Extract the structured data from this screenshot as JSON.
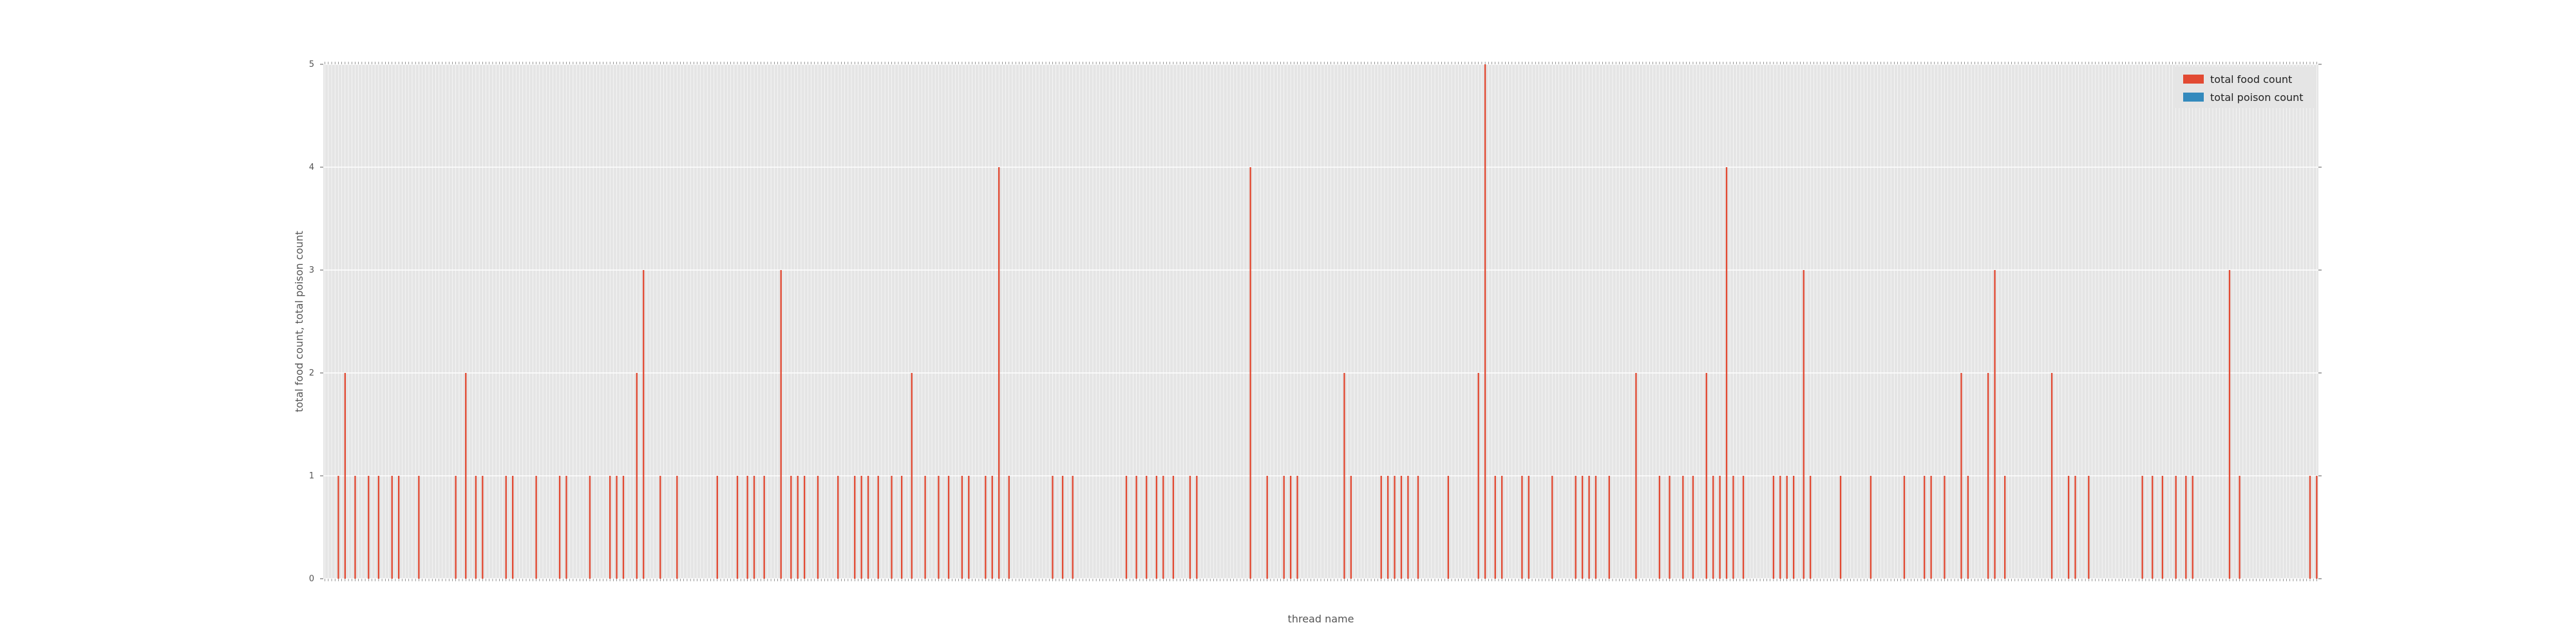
{
  "chart_data": {
    "type": "bar",
    "xlabel": "thread name",
    "ylabel": "total food count, total poison count",
    "ylim": [
      0,
      5
    ],
    "yticks": [
      0,
      1,
      2,
      3,
      4,
      5
    ],
    "grid": true,
    "legend_position": "top-right",
    "x_tick_labels": "unreadable (dense rotated thread-name labels, one per bar)",
    "series": [
      {
        "name": "total food count",
        "color": "#E24A33",
        "values": [
          0,
          0,
          0,
          0,
          1,
          0,
          2,
          0,
          0,
          1,
          0,
          0,
          0,
          1,
          0,
          0,
          1,
          0,
          0,
          0,
          1,
          0,
          1,
          0,
          0,
          0,
          0,
          0,
          1,
          0,
          0,
          0,
          0,
          0,
          0,
          0,
          0,
          0,
          0,
          1,
          0,
          0,
          2,
          0,
          0,
          1,
          0,
          1,
          0,
          0,
          0,
          0,
          0,
          0,
          1,
          0,
          1,
          0,
          0,
          0,
          0,
          0,
          0,
          1,
          0,
          0,
          0,
          0,
          0,
          0,
          1,
          0,
          1,
          0,
          0,
          0,
          0,
          0,
          0,
          1,
          0,
          0,
          0,
          0,
          0,
          1,
          0,
          1,
          0,
          1,
          0,
          0,
          0,
          2,
          0,
          3,
          0,
          0,
          0,
          0,
          1,
          0,
          0,
          0,
          0,
          1,
          0,
          0,
          0,
          0,
          0,
          0,
          0,
          0,
          0,
          0,
          0,
          1,
          0,
          0,
          0,
          0,
          0,
          1,
          0,
          0,
          1,
          0,
          1,
          0,
          0,
          1,
          0,
          0,
          0,
          0,
          3,
          0,
          0,
          1,
          0,
          1,
          0,
          1,
          0,
          0,
          0,
          1,
          0,
          0,
          0,
          0,
          0,
          1,
          0,
          0,
          0,
          0,
          1,
          0,
          1,
          0,
          1,
          0,
          0,
          1,
          0,
          0,
          0,
          1,
          0,
          0,
          1,
          0,
          0,
          2,
          0,
          0,
          0,
          1,
          0,
          0,
          0,
          1,
          0,
          0,
          1,
          0,
          0,
          0,
          1,
          0,
          1,
          0,
          0,
          0,
          0,
          1,
          0,
          1,
          0,
          4,
          0,
          0,
          1,
          0,
          0,
          0,
          0,
          0,
          0,
          0,
          0,
          0,
          0,
          0,
          0,
          1,
          0,
          0,
          1,
          0,
          0,
          1,
          0,
          0,
          0,
          0,
          0,
          0,
          0,
          0,
          0,
          0,
          0,
          0,
          0,
          0,
          0,
          1,
          0,
          0,
          1,
          0,
          0,
          1,
          0,
          0,
          1,
          0,
          1,
          0,
          0,
          1,
          0,
          0,
          0,
          0,
          1,
          0,
          1,
          0,
          0,
          0,
          0,
          0,
          0,
          0,
          0,
          0,
          0,
          0,
          0,
          0,
          0,
          0,
          4,
          0,
          0,
          0,
          0,
          1,
          0,
          0,
          0,
          0,
          1,
          0,
          1,
          0,
          1,
          0,
          0,
          0,
          0,
          0,
          0,
          0,
          0,
          0,
          0,
          0,
          0,
          0,
          2,
          0,
          1,
          0,
          0,
          0,
          0,
          0,
          0,
          0,
          0,
          1,
          0,
          1,
          0,
          1,
          0,
          1,
          0,
          1,
          0,
          0,
          1,
          0,
          0,
          0,
          0,
          0,
          0,
          0,
          0,
          1,
          0,
          0,
          0,
          0,
          0,
          0,
          0,
          0,
          2,
          0,
          5,
          0,
          0,
          1,
          0,
          1,
          0,
          0,
          0,
          0,
          0,
          1,
          0,
          1,
          0,
          0,
          0,
          0,
          0,
          0,
          1,
          0,
          0,
          0,
          0,
          0,
          0,
          1,
          0,
          1,
          0,
          1,
          0,
          1,
          0,
          0,
          0,
          1,
          0,
          0,
          0,
          0,
          0,
          0,
          0,
          2,
          0,
          0,
          0,
          0,
          0,
          0,
          1,
          0,
          0,
          1,
          0,
          0,
          0,
          1,
          0,
          0,
          1,
          0,
          0,
          0,
          2,
          0,
          1,
          0,
          1,
          0,
          4,
          0,
          1,
          0,
          0,
          1,
          0,
          0,
          0,
          0,
          0,
          0,
          0,
          0,
          1,
          0,
          1,
          0,
          1,
          0,
          1,
          0,
          0,
          3,
          0,
          1,
          0,
          0,
          0,
          0,
          0,
          0,
          0,
          0,
          1,
          0,
          0,
          0,
          0,
          0,
          0,
          0,
          0,
          1,
          0,
          0,
          0,
          0,
          0,
          0,
          0,
          0,
          0,
          1,
          0,
          0,
          0,
          0,
          0,
          1,
          0,
          1,
          0,
          0,
          0,
          1,
          0,
          0,
          0,
          0,
          2,
          0,
          1,
          0,
          0,
          0,
          0,
          0,
          2,
          0,
          3,
          0,
          0,
          1,
          0,
          0,
          0,
          0,
          0,
          0,
          0,
          0,
          0,
          0,
          0,
          0,
          0,
          2,
          0,
          0,
          0,
          0,
          1,
          0,
          1,
          0,
          0,
          0,
          1,
          0,
          0,
          0,
          0,
          0,
          0,
          0,
          0,
          0,
          0,
          0,
          0,
          0,
          0,
          0,
          1,
          0,
          0,
          1,
          0,
          0,
          1,
          0,
          0,
          0,
          1,
          0,
          0,
          1,
          0,
          1,
          0,
          0,
          0,
          0,
          0,
          0,
          0,
          0,
          0,
          0,
          3,
          0,
          0,
          1,
          0,
          0,
          0,
          0,
          0,
          0,
          0,
          0,
          0,
          0,
          0,
          0,
          0,
          0,
          0,
          0,
          0,
          0,
          0,
          0,
          1,
          0,
          1
        ]
      },
      {
        "name": "total poison count",
        "color": "#348ABD",
        "values": []
      }
    ]
  }
}
